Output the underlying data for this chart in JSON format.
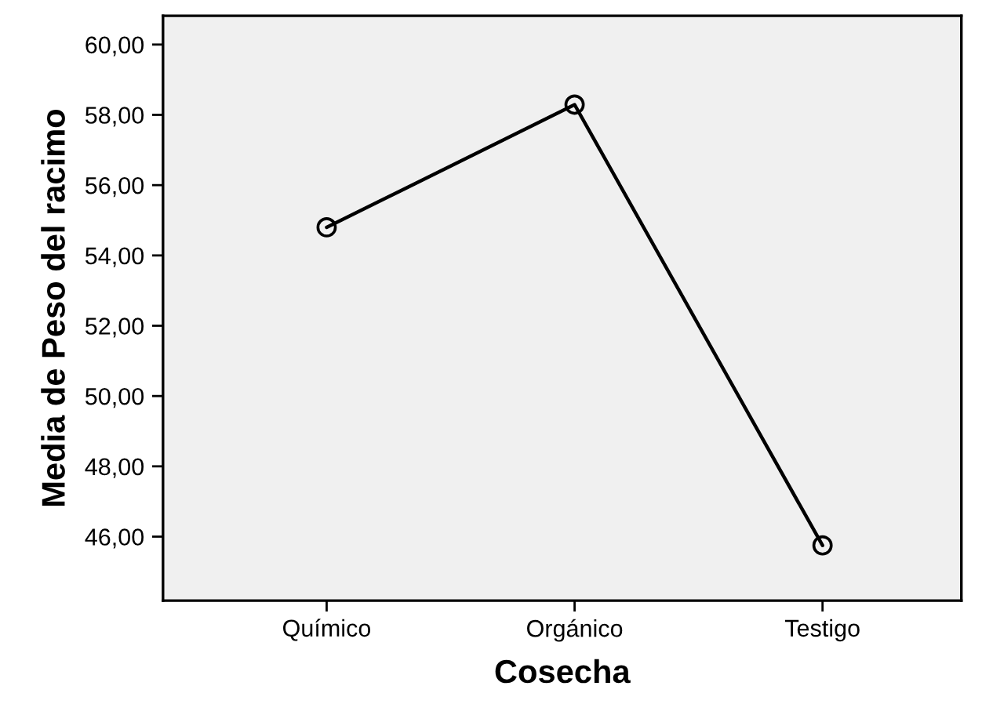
{
  "chart_data": {
    "type": "line",
    "xlabel": "Cosecha",
    "ylabel": "Media de Peso del racimo",
    "categories": [
      "Químico",
      "Orgánico",
      "Testigo"
    ],
    "series": [
      {
        "color": "#000000",
        "values": [
          54.8,
          58.29,
          45.75
        ]
      }
    ],
    "marker": "circle",
    "line_style": "solid",
    "grid": false,
    "ylim": [
      44.18,
      60.82
    ],
    "yticks": [
      {
        "value": 46,
        "label": "46,00"
      },
      {
        "value": 48,
        "label": "48,00"
      },
      {
        "value": 50,
        "label": "50,00"
      },
      {
        "value": 52,
        "label": "52,00"
      },
      {
        "value": 54,
        "label": "54,00"
      },
      {
        "value": 56,
        "label": "56,00"
      },
      {
        "value": 58,
        "label": "58,00"
      },
      {
        "value": 60,
        "label": "60,00"
      }
    ]
  }
}
